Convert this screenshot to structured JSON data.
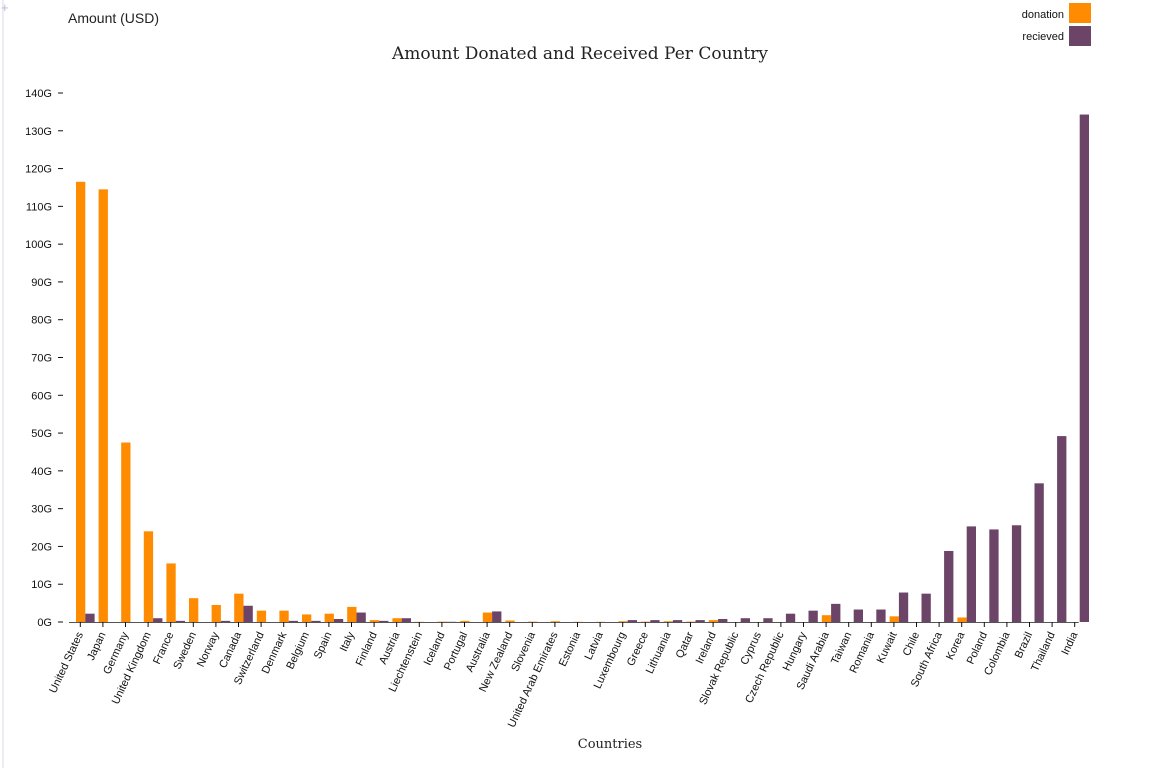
{
  "chart_data": {
    "type": "bar",
    "title": "Amount Donated and Received Per Country",
    "xlabel": "Countries",
    "ylabel": "Amount (USD)",
    "ylim": [
      0,
      140
    ],
    "y_unit_suffix": "G",
    "y_ticks": [
      0,
      10,
      20,
      30,
      40,
      50,
      60,
      70,
      80,
      90,
      100,
      110,
      120,
      130,
      140
    ],
    "y_tick_labels": [
      "0G",
      "10G",
      "20G",
      "30G",
      "40G",
      "50G",
      "60G",
      "70G",
      "80G",
      "90G",
      "100G",
      "110G",
      "120G",
      "130G",
      "140G"
    ],
    "legend_position": "top-right",
    "grid": false,
    "categories": [
      "United States",
      "Japan",
      "Germany",
      "United Kingdom",
      "France",
      "Sweden",
      "Norway",
      "Canada",
      "Switzerland",
      "Denmark",
      "Belgium",
      "Spain",
      "Italy",
      "Finland",
      "Austria",
      "Liechtenstein",
      "Iceland",
      "Portugal",
      "Australia",
      "New Zealand",
      "Slovenia",
      "United Arab Emirates",
      "Estonia",
      "Latvia",
      "Luxembourg",
      "Greece",
      "Lithuania",
      "Qatar",
      "Ireland",
      "Slovak Republic",
      "Cyprus",
      "Czech Republic",
      "Hungary",
      "Saudi Arabia",
      "Taiwan",
      "Romania",
      "Kuwait",
      "Chile",
      "South Africa",
      "Korea",
      "Poland",
      "Colombia",
      "Brazil",
      "Thailand",
      "India"
    ],
    "series": [
      {
        "name": "donation",
        "color": "#ff8c00",
        "values": [
          116.5,
          114.5,
          47.5,
          24,
          15.5,
          6.3,
          4.5,
          7.5,
          3.0,
          3.0,
          2.0,
          2.2,
          4.0,
          0.5,
          1.0,
          0.05,
          0.1,
          0.3,
          2.5,
          0.4,
          0.1,
          0.2,
          0.05,
          0.05,
          0.2,
          0.1,
          0.2,
          0.1,
          0.5,
          0,
          0,
          0,
          0,
          1.8,
          0,
          0,
          1.5,
          0,
          0,
          1.2,
          0,
          0,
          0,
          0,
          0
        ]
      },
      {
        "name": "recieved",
        "color": "#6b4468",
        "values": [
          2.2,
          0,
          0,
          1.0,
          0.3,
          0,
          0.3,
          4.3,
          0,
          0.3,
          0.3,
          0.8,
          2.5,
          0.3,
          1.0,
          0,
          0.05,
          0,
          2.8,
          0,
          0,
          0,
          0,
          0,
          0.5,
          0.5,
          0.5,
          0.5,
          0.8,
          1.0,
          1.0,
          2.2,
          3.0,
          4.8,
          3.3,
          3.3,
          7.8,
          7.5,
          18.8,
          25.3,
          24.5,
          25.6,
          36.7,
          49.2,
          134.3
        ]
      }
    ]
  }
}
